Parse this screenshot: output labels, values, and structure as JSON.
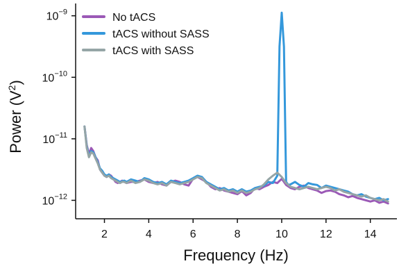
{
  "chart_data": {
    "type": "line",
    "xlabel": "Frequency (Hz)",
    "ylabel_main": "Power (V",
    "ylabel_sup": "2",
    "ylabel_close": ")",
    "xlim": [
      0.7,
      15.2
    ],
    "x_ticks": [
      2,
      4,
      6,
      8,
      10,
      12,
      14
    ],
    "y_scale": "log",
    "ylim_log10": [
      -12.3,
      -8.8
    ],
    "y_ticks": [
      {
        "base": "10",
        "exp": "−9",
        "log10": -9
      },
      {
        "base": "10",
        "exp": "−10",
        "log10": -10
      },
      {
        "base": "10",
        "exp": "−11",
        "log10": -11
      },
      {
        "base": "10",
        "exp": "−12",
        "log10": -12
      }
    ],
    "grid": false,
    "legend_position": "top-left",
    "series": [
      {
        "name": "No tACS",
        "color": "#9b59b6",
        "x": [
          1.1,
          1.2,
          1.3,
          1.4,
          1.5,
          1.6,
          1.7,
          1.8,
          1.9,
          2.0,
          2.1,
          2.2,
          2.3,
          2.4,
          2.5,
          2.6,
          2.7,
          2.8,
          2.9,
          3.0,
          3.2,
          3.4,
          3.6,
          3.8,
          4.0,
          4.2,
          4.4,
          4.6,
          4.8,
          5.0,
          5.2,
          5.4,
          5.6,
          5.8,
          6.0,
          6.2,
          6.4,
          6.6,
          6.8,
          7.0,
          7.2,
          7.4,
          7.6,
          7.8,
          8.0,
          8.2,
          8.4,
          8.6,
          8.8,
          9.0,
          9.2,
          9.4,
          9.6,
          9.8,
          10.0,
          10.2,
          10.4,
          10.6,
          10.8,
          11.0,
          11.2,
          11.4,
          11.6,
          11.8,
          12.0,
          12.2,
          12.4,
          12.6,
          12.8,
          13.0,
          13.2,
          13.4,
          13.6,
          13.8,
          14.0,
          14.2,
          14.4,
          14.6,
          14.8
        ],
        "y_log10": [
          -10.8,
          -11.1,
          -11.25,
          -11.15,
          -11.2,
          -11.3,
          -11.35,
          -11.5,
          -11.55,
          -11.6,
          -11.62,
          -11.58,
          -11.6,
          -11.65,
          -11.7,
          -11.72,
          -11.7,
          -11.68,
          -11.7,
          -11.72,
          -11.7,
          -11.7,
          -11.68,
          -11.66,
          -11.7,
          -11.72,
          -11.7,
          -11.74,
          -11.76,
          -11.7,
          -11.68,
          -11.7,
          -11.74,
          -11.76,
          -11.65,
          -11.62,
          -11.66,
          -11.7,
          -11.78,
          -11.82,
          -11.8,
          -11.84,
          -11.86,
          -11.88,
          -11.9,
          -11.85,
          -11.92,
          -11.88,
          -11.8,
          -11.82,
          -11.78,
          -11.75,
          -11.7,
          -11.72,
          -11.65,
          -11.75,
          -11.8,
          -11.82,
          -11.78,
          -11.76,
          -11.8,
          -11.82,
          -11.84,
          -11.88,
          -11.85,
          -11.84,
          -11.86,
          -11.9,
          -11.92,
          -11.95,
          -11.93,
          -11.96,
          -11.98,
          -12.0,
          -12.02,
          -12.0,
          -12.04,
          -12.02,
          -12.05
        ]
      },
      {
        "name": "tACS without SASS",
        "color": "#3498db",
        "x": [
          1.1,
          1.2,
          1.3,
          1.4,
          1.5,
          1.6,
          1.7,
          1.8,
          1.9,
          2.0,
          2.1,
          2.2,
          2.3,
          2.4,
          2.5,
          2.6,
          2.7,
          2.8,
          2.9,
          3.0,
          3.2,
          3.4,
          3.6,
          3.8,
          4.0,
          4.2,
          4.4,
          4.6,
          4.8,
          5.0,
          5.2,
          5.4,
          5.6,
          5.8,
          6.0,
          6.2,
          6.4,
          6.6,
          6.8,
          7.0,
          7.2,
          7.4,
          7.6,
          7.8,
          8.0,
          8.2,
          8.4,
          8.6,
          8.8,
          9.0,
          9.2,
          9.4,
          9.6,
          9.8,
          9.9,
          10.0,
          10.1,
          10.2,
          10.3,
          10.4,
          10.6,
          10.8,
          11.0,
          11.2,
          11.4,
          11.6,
          11.8,
          12.0,
          12.2,
          12.4,
          12.6,
          12.8,
          13.0,
          13.2,
          13.4,
          13.6,
          13.8,
          14.0,
          14.2,
          14.4,
          14.6,
          14.8
        ],
        "y_log10": [
          -10.8,
          -11.12,
          -11.28,
          -11.2,
          -11.22,
          -11.3,
          -11.38,
          -11.48,
          -11.52,
          -11.58,
          -11.6,
          -11.58,
          -11.62,
          -11.64,
          -11.66,
          -11.68,
          -11.7,
          -11.69,
          -11.68,
          -11.7,
          -11.66,
          -11.68,
          -11.7,
          -11.64,
          -11.66,
          -11.7,
          -11.72,
          -11.7,
          -11.74,
          -11.68,
          -11.7,
          -11.72,
          -11.7,
          -11.68,
          -11.64,
          -11.6,
          -11.62,
          -11.7,
          -11.74,
          -11.78,
          -11.82,
          -11.8,
          -11.84,
          -11.82,
          -11.86,
          -11.82,
          -11.86,
          -11.84,
          -11.8,
          -11.78,
          -11.76,
          -11.7,
          -11.72,
          -11.6,
          -9.5,
          -8.95,
          -9.5,
          -11.7,
          -11.75,
          -11.74,
          -11.7,
          -11.75,
          -11.78,
          -11.72,
          -11.74,
          -11.75,
          -11.8,
          -11.76,
          -11.78,
          -11.8,
          -11.82,
          -11.84,
          -11.86,
          -11.9,
          -11.92,
          -11.9,
          -11.94,
          -11.96,
          -11.98,
          -11.96,
          -12.0,
          -11.98
        ]
      },
      {
        "name": "tACS with SASS",
        "color": "#95a5a6",
        "x": [
          1.1,
          1.2,
          1.3,
          1.4,
          1.5,
          1.6,
          1.7,
          1.8,
          1.9,
          2.0,
          2.1,
          2.2,
          2.3,
          2.4,
          2.5,
          2.6,
          2.7,
          2.8,
          2.9,
          3.0,
          3.2,
          3.4,
          3.6,
          3.8,
          4.0,
          4.2,
          4.4,
          4.6,
          4.8,
          5.0,
          5.2,
          5.4,
          5.6,
          5.8,
          6.0,
          6.2,
          6.4,
          6.6,
          6.8,
          7.0,
          7.2,
          7.4,
          7.6,
          7.8,
          8.0,
          8.2,
          8.4,
          8.6,
          8.8,
          9.0,
          9.2,
          9.4,
          9.6,
          9.8,
          10.0,
          10.2,
          10.4,
          10.6,
          10.8,
          11.0,
          11.2,
          11.4,
          11.6,
          11.8,
          12.0,
          12.2,
          12.4,
          12.6,
          12.8,
          13.0,
          13.2,
          13.4,
          13.6,
          13.8,
          14.0,
          14.2,
          14.4,
          14.6,
          14.8
        ],
        "y_log10": [
          -10.8,
          -11.15,
          -11.3,
          -11.22,
          -11.24,
          -11.32,
          -11.4,
          -11.5,
          -11.55,
          -11.6,
          -11.62,
          -11.6,
          -11.64,
          -11.66,
          -11.68,
          -11.7,
          -11.72,
          -11.7,
          -11.7,
          -11.72,
          -11.68,
          -11.72,
          -11.7,
          -11.66,
          -11.68,
          -11.72,
          -11.74,
          -11.72,
          -11.76,
          -11.7,
          -11.72,
          -11.74,
          -11.72,
          -11.7,
          -11.66,
          -11.62,
          -11.64,
          -11.72,
          -11.76,
          -11.8,
          -11.84,
          -11.82,
          -11.86,
          -11.84,
          -11.88,
          -11.84,
          -11.88,
          -11.86,
          -11.82,
          -11.8,
          -11.74,
          -11.66,
          -11.6,
          -11.55,
          -11.62,
          -11.72,
          -11.78,
          -11.8,
          -11.82,
          -11.8,
          -11.78,
          -11.8,
          -11.82,
          -11.8,
          -11.78,
          -11.8,
          -11.84,
          -11.82,
          -11.86,
          -11.88,
          -11.9,
          -11.92,
          -11.94,
          -11.92,
          -11.96,
          -11.98,
          -12.0,
          -11.98,
          -12.02
        ]
      }
    ]
  }
}
